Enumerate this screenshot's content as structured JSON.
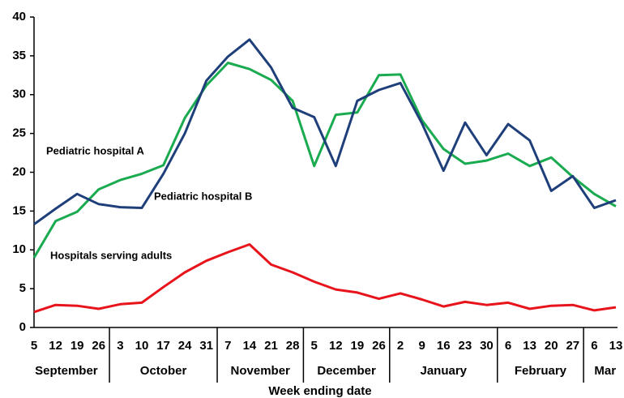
{
  "chart_data": {
    "type": "line",
    "x_label": "Week ending date",
    "categories": [
      "5",
      "12",
      "19",
      "26",
      "3",
      "10",
      "17",
      "24",
      "31",
      "7",
      "14",
      "21",
      "28",
      "5",
      "12",
      "19",
      "26",
      "2",
      "9",
      "16",
      "23",
      "30",
      "6",
      "13",
      "20",
      "27",
      "6",
      "13"
    ],
    "months": [
      "September",
      "October",
      "November",
      "December",
      "January",
      "February",
      "Mar"
    ],
    "ylim": [
      0,
      40
    ],
    "yticks": [
      0,
      5,
      10,
      15,
      20,
      25,
      30,
      35,
      40
    ],
    "grid": false,
    "series": [
      {
        "name": "Pediatric hospital A",
        "color": "#1aaa50",
        "values": [
          9.0,
          13.7,
          14.9,
          17.8,
          19.0,
          19.8,
          20.9,
          27.0,
          31.2,
          34.1,
          33.3,
          31.9,
          29.2,
          20.8,
          27.4,
          27.7,
          32.5,
          32.6,
          26.7,
          23.0,
          21.1,
          21.5,
          22.4,
          20.8,
          21.9,
          19.4,
          17.2,
          15.6
        ]
      },
      {
        "name": "Pediatric hospital B",
        "color": "#1f3f7a",
        "values": [
          13.3,
          15.3,
          17.2,
          15.9,
          15.5,
          15.4,
          19.8,
          25.0,
          31.8,
          34.9,
          37.1,
          33.5,
          28.3,
          27.1,
          20.8,
          29.2,
          30.6,
          31.5,
          26.3,
          20.2,
          26.4,
          22.2,
          26.2,
          24.1,
          17.6,
          19.5,
          15.4,
          16.4
        ]
      },
      {
        "name": "Hospitals serving adults",
        "color": "#e8141c",
        "values": [
          2.0,
          2.9,
          2.8,
          2.4,
          3.0,
          3.2,
          5.2,
          7.1,
          8.6,
          9.7,
          10.7,
          8.1,
          7.1,
          5.9,
          4.9,
          4.5,
          3.7,
          4.4,
          3.6,
          2.7,
          3.3,
          2.9,
          3.2,
          2.4,
          2.8,
          2.9,
          2.2,
          2.6
        ]
      }
    ]
  }
}
